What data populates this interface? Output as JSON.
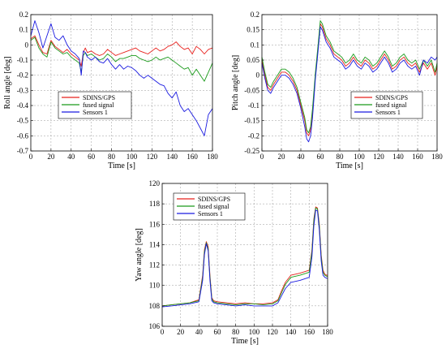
{
  "chart_data": [
    {
      "type": "line",
      "id": "roll",
      "ylabel": "Roll angle [deg]",
      "xlabel": "Time [s]",
      "xlim": [
        0,
        180
      ],
      "ylim": [
        -0.7,
        0.2
      ],
      "xticks": [
        0,
        20,
        40,
        60,
        80,
        100,
        120,
        140,
        160,
        180
      ],
      "yticks": [
        -0.7,
        -0.6,
        -0.5,
        -0.4,
        -0.3,
        -0.2,
        -0.1,
        0,
        0.1,
        0.2
      ],
      "ytick_labels": [
        "-0.7",
        "-0.6",
        "-0.5",
        "-0.4",
        "-0.3",
        "-0.2",
        "-0.1",
        "0",
        "0.1",
        "0.2"
      ],
      "legend": "center-left",
      "series": [
        {
          "name": "SDINS/GPS",
          "color": "#e8201c",
          "x": [
            0,
            4,
            8,
            12,
            16,
            20,
            24,
            28,
            32,
            36,
            40,
            44,
            48,
            50,
            52,
            54,
            56,
            60,
            64,
            68,
            72,
            76,
            80,
            84,
            88,
            92,
            96,
            100,
            104,
            108,
            112,
            116,
            120,
            124,
            128,
            132,
            136,
            140,
            144,
            148,
            152,
            156,
            160,
            164,
            168,
            172,
            176,
            180
          ],
          "y": [
            0.04,
            0.06,
            0.0,
            -0.05,
            -0.06,
            0.03,
            -0.01,
            -0.03,
            -0.05,
            -0.03,
            -0.06,
            -0.08,
            -0.1,
            -0.14,
            -0.05,
            -0.02,
            -0.05,
            -0.04,
            -0.06,
            -0.07,
            -0.06,
            -0.03,
            -0.05,
            -0.07,
            -0.06,
            -0.05,
            -0.04,
            -0.03,
            -0.02,
            -0.04,
            -0.05,
            -0.06,
            -0.04,
            -0.02,
            -0.04,
            -0.03,
            -0.01,
            0.0,
            0.02,
            -0.01,
            -0.03,
            -0.02,
            -0.06,
            -0.01,
            -0.03,
            -0.06,
            -0.03,
            -0.02
          ]
        },
        {
          "name": "fused signal",
          "color": "#1a9a1a",
          "x": [
            0,
            4,
            8,
            12,
            16,
            20,
            24,
            28,
            32,
            36,
            40,
            44,
            48,
            50,
            52,
            54,
            56,
            60,
            64,
            68,
            72,
            76,
            80,
            84,
            88,
            92,
            96,
            100,
            104,
            108,
            112,
            116,
            120,
            124,
            128,
            132,
            136,
            140,
            144,
            148,
            152,
            156,
            160,
            164,
            168,
            172,
            176,
            180
          ],
          "y": [
            0.03,
            0.05,
            -0.02,
            -0.06,
            -0.08,
            0.02,
            -0.02,
            -0.04,
            -0.06,
            -0.05,
            -0.08,
            -0.1,
            -0.12,
            -0.18,
            -0.07,
            -0.05,
            -0.07,
            -0.06,
            -0.08,
            -0.1,
            -0.09,
            -0.06,
            -0.08,
            -0.11,
            -0.09,
            -0.09,
            -0.08,
            -0.07,
            -0.07,
            -0.09,
            -0.1,
            -0.11,
            -0.1,
            -0.08,
            -0.1,
            -0.09,
            -0.08,
            -0.1,
            -0.12,
            -0.14,
            -0.16,
            -0.15,
            -0.2,
            -0.16,
            -0.2,
            -0.24,
            -0.18,
            -0.12
          ]
        },
        {
          "name": "Sensors 1",
          "color": "#1a1ae0",
          "x": [
            0,
            4,
            8,
            12,
            16,
            20,
            24,
            28,
            32,
            36,
            40,
            44,
            48,
            50,
            52,
            54,
            56,
            60,
            64,
            68,
            72,
            76,
            80,
            84,
            88,
            92,
            96,
            100,
            104,
            108,
            112,
            116,
            120,
            124,
            128,
            132,
            136,
            140,
            144,
            148,
            152,
            156,
            160,
            164,
            168,
            172,
            176,
            180
          ],
          "y": [
            0.06,
            0.16,
            0.08,
            -0.02,
            0.06,
            0.14,
            0.05,
            0.03,
            0.06,
            0.0,
            -0.04,
            -0.06,
            -0.09,
            -0.2,
            -0.04,
            -0.05,
            -0.08,
            -0.1,
            -0.08,
            -0.11,
            -0.12,
            -0.09,
            -0.13,
            -0.16,
            -0.13,
            -0.16,
            -0.14,
            -0.15,
            -0.17,
            -0.2,
            -0.22,
            -0.2,
            -0.22,
            -0.24,
            -0.26,
            -0.27,
            -0.32,
            -0.35,
            -0.31,
            -0.4,
            -0.44,
            -0.42,
            -0.46,
            -0.5,
            -0.55,
            -0.6,
            -0.46,
            -0.42
          ]
        }
      ]
    },
    {
      "type": "line",
      "id": "pitch",
      "ylabel": "Pitch angle [deg]",
      "xlabel": "Time [s]",
      "xlim": [
        0,
        180
      ],
      "ylim": [
        -0.25,
        0.2
      ],
      "xticks": [
        0,
        20,
        40,
        60,
        80,
        100,
        120,
        140,
        160,
        180
      ],
      "yticks": [
        -0.25,
        -0.2,
        -0.15,
        -0.1,
        -0.05,
        0,
        0.05,
        0.1,
        0.15,
        0.2
      ],
      "ytick_labels": [
        "-0.25",
        "-0.2",
        "-0.15",
        "-0.1",
        "-0.05",
        "0",
        "0.05",
        "0.1",
        "0.15",
        "0.2"
      ],
      "legend": "center-right",
      "series": [
        {
          "name": "SDINS/GPS",
          "color": "#e8201c",
          "x": [
            0,
            3,
            6,
            9,
            12,
            16,
            20,
            24,
            28,
            32,
            36,
            40,
            44,
            46,
            48,
            50,
            52,
            55,
            58,
            60,
            62,
            66,
            70,
            74,
            78,
            82,
            86,
            90,
            94,
            98,
            102,
            106,
            110,
            114,
            118,
            122,
            126,
            130,
            134,
            138,
            142,
            146,
            150,
            154,
            158,
            162,
            166,
            170,
            174,
            178,
            180
          ],
          "y": [
            0.05,
            0.0,
            -0.04,
            -0.05,
            -0.03,
            -0.01,
            0.01,
            0.01,
            0.0,
            -0.02,
            -0.05,
            -0.1,
            -0.15,
            -0.19,
            -0.2,
            -0.18,
            -0.12,
            0.0,
            0.1,
            0.17,
            0.16,
            0.12,
            0.1,
            0.07,
            0.06,
            0.05,
            0.03,
            0.04,
            0.06,
            0.04,
            0.03,
            0.05,
            0.04,
            0.02,
            0.03,
            0.05,
            0.07,
            0.05,
            0.02,
            0.03,
            0.05,
            0.06,
            0.04,
            0.03,
            0.04,
            0.01,
            0.04,
            0.02,
            0.04,
            0.0,
            0.03
          ]
        },
        {
          "name": "fused signal",
          "color": "#1a9a1a",
          "x": [
            0,
            3,
            6,
            9,
            12,
            16,
            20,
            24,
            28,
            32,
            36,
            40,
            44,
            46,
            48,
            50,
            52,
            55,
            58,
            60,
            62,
            66,
            70,
            74,
            78,
            82,
            86,
            90,
            94,
            98,
            102,
            106,
            110,
            114,
            118,
            122,
            126,
            130,
            134,
            138,
            142,
            146,
            150,
            154,
            158,
            162,
            166,
            170,
            174,
            178,
            180
          ],
          "y": [
            0.06,
            0.01,
            -0.03,
            -0.04,
            -0.02,
            0.0,
            0.02,
            0.02,
            0.01,
            -0.01,
            -0.04,
            -0.09,
            -0.14,
            -0.18,
            -0.19,
            -0.17,
            -0.11,
            0.01,
            0.11,
            0.18,
            0.17,
            0.13,
            0.11,
            0.08,
            0.07,
            0.06,
            0.04,
            0.05,
            0.07,
            0.05,
            0.04,
            0.06,
            0.05,
            0.03,
            0.04,
            0.06,
            0.08,
            0.06,
            0.03,
            0.04,
            0.06,
            0.07,
            0.05,
            0.04,
            0.05,
            0.02,
            0.05,
            0.03,
            0.05,
            0.01,
            0.04
          ]
        },
        {
          "name": "Sensors 1",
          "color": "#1a1ae0",
          "x": [
            0,
            3,
            6,
            9,
            12,
            16,
            20,
            24,
            28,
            32,
            36,
            40,
            44,
            46,
            48,
            50,
            52,
            55,
            58,
            60,
            62,
            66,
            70,
            74,
            78,
            82,
            86,
            90,
            94,
            98,
            102,
            106,
            110,
            114,
            118,
            122,
            126,
            130,
            134,
            138,
            142,
            146,
            150,
            154,
            158,
            162,
            166,
            170,
            174,
            178,
            180
          ],
          "y": [
            0.04,
            -0.01,
            -0.05,
            -0.06,
            -0.04,
            -0.02,
            0.0,
            0.0,
            -0.01,
            -0.03,
            -0.06,
            -0.11,
            -0.17,
            -0.21,
            -0.22,
            -0.2,
            -0.14,
            -0.01,
            0.09,
            0.16,
            0.15,
            0.11,
            0.09,
            0.06,
            0.05,
            0.04,
            0.02,
            0.03,
            0.05,
            0.03,
            0.02,
            0.04,
            0.03,
            0.01,
            0.02,
            0.04,
            0.06,
            0.04,
            0.01,
            0.02,
            0.04,
            0.05,
            0.03,
            0.02,
            0.03,
            0.0,
            0.05,
            0.04,
            0.06,
            0.05,
            0.06
          ]
        }
      ]
    },
    {
      "type": "line",
      "id": "yaw",
      "ylabel": "Yaw angle [deg]",
      "xlabel": "Time [s]",
      "xlim": [
        0,
        180
      ],
      "ylim": [
        106,
        120
      ],
      "xticks": [
        0,
        20,
        40,
        60,
        80,
        100,
        120,
        140,
        160,
        180
      ],
      "yticks": [
        106,
        108,
        110,
        112,
        114,
        116,
        118,
        120
      ],
      "ytick_labels": [
        "106",
        "108",
        "110",
        "112",
        "114",
        "116",
        "118",
        "120"
      ],
      "legend": "top-left",
      "series": [
        {
          "name": "SDINS/GPS",
          "color": "#e8201c",
          "x": [
            0,
            10,
            20,
            30,
            40,
            44,
            46,
            48,
            50,
            52,
            54,
            56,
            60,
            70,
            80,
            90,
            100,
            110,
            120,
            126,
            130,
            134,
            140,
            150,
            160,
            163,
            165,
            167,
            169,
            171,
            173,
            175,
            177,
            179,
            180
          ],
          "y": [
            108.0,
            108.1,
            108.2,
            108.3,
            108.6,
            111.0,
            113.5,
            114.3,
            113.8,
            111.0,
            108.8,
            108.5,
            108.4,
            108.3,
            108.2,
            108.3,
            108.2,
            108.2,
            108.3,
            108.6,
            109.5,
            110.3,
            111.0,
            111.2,
            111.5,
            113.5,
            116.5,
            117.7,
            117.6,
            116.0,
            113.0,
            111.5,
            111.1,
            111.0,
            111.0
          ]
        },
        {
          "name": "fused signal",
          "color": "#1a9a1a",
          "x": [
            0,
            10,
            20,
            30,
            40,
            44,
            46,
            48,
            50,
            52,
            54,
            56,
            60,
            70,
            80,
            90,
            100,
            110,
            120,
            126,
            130,
            134,
            140,
            150,
            160,
            163,
            165,
            167,
            169,
            171,
            173,
            175,
            177,
            179,
            180
          ],
          "y": [
            108.0,
            108.1,
            108.2,
            108.3,
            108.5,
            110.8,
            113.3,
            114.2,
            113.6,
            110.8,
            108.7,
            108.4,
            108.3,
            108.2,
            108.1,
            108.2,
            108.2,
            108.1,
            108.2,
            108.5,
            109.3,
            110.1,
            110.8,
            111.0,
            111.3,
            113.3,
            116.3,
            117.6,
            117.5,
            115.8,
            112.8,
            111.3,
            111.0,
            110.9,
            110.9
          ]
        },
        {
          "name": "Sensors 1",
          "color": "#1a1ae0",
          "x": [
            0,
            10,
            20,
            30,
            40,
            44,
            46,
            48,
            50,
            52,
            54,
            56,
            60,
            70,
            80,
            90,
            100,
            110,
            120,
            126,
            130,
            134,
            140,
            150,
            160,
            163,
            165,
            167,
            169,
            171,
            173,
            175,
            177,
            179,
            180
          ],
          "y": [
            107.9,
            108.0,
            108.1,
            108.2,
            108.4,
            110.5,
            113.0,
            114.1,
            113.4,
            110.5,
            108.5,
            108.3,
            108.2,
            108.1,
            108.0,
            108.1,
            108.0,
            108.0,
            108.0,
            108.3,
            109.0,
            109.7,
            110.3,
            110.5,
            110.8,
            112.8,
            115.8,
            117.4,
            117.3,
            115.4,
            112.4,
            111.0,
            110.8,
            110.7,
            110.7
          ]
        }
      ]
    }
  ]
}
